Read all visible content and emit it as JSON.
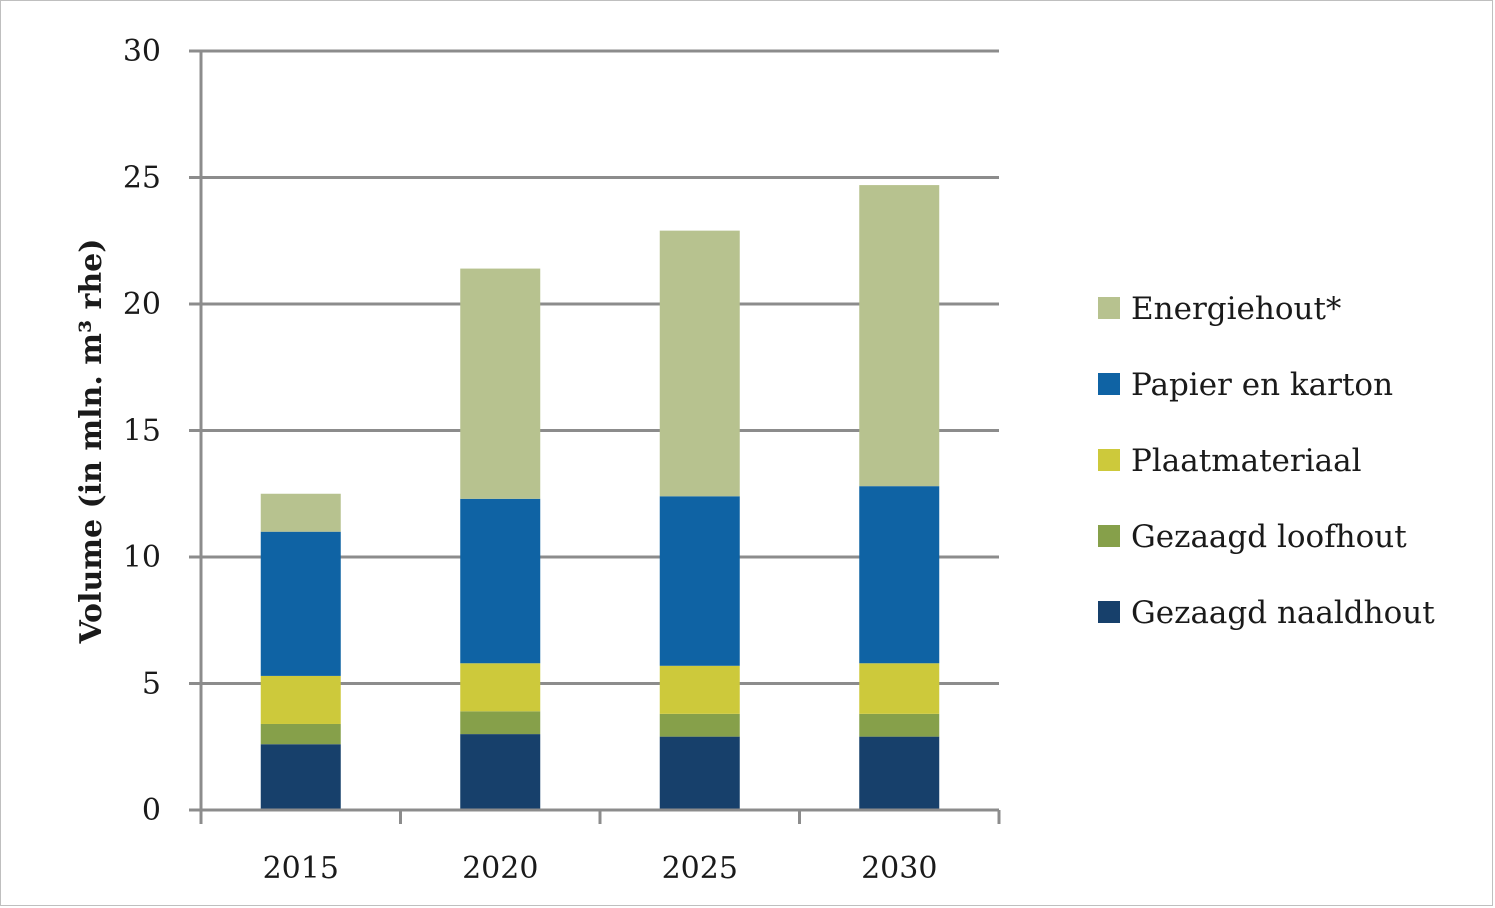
{
  "chart_data": {
    "type": "bar",
    "stacked": true,
    "ylabel": "Volume (in mln. m³ rhe)",
    "xlabel": "",
    "ylim": [
      0,
      30
    ],
    "yticks": [
      0,
      5,
      10,
      15,
      20,
      25,
      30
    ],
    "grid": true,
    "legend_position": "right",
    "categories": [
      "2015",
      "2020",
      "2025",
      "2030"
    ],
    "series": [
      {
        "name": "Gezaagd naaldhout",
        "color": "#17406b",
        "values": [
          2.6,
          3.0,
          2.9,
          2.9
        ]
      },
      {
        "name": "Gezaagd loofhout",
        "color": "#86a04a",
        "values": [
          0.8,
          0.9,
          0.9,
          0.9
        ]
      },
      {
        "name": "Plaatmateriaal",
        "color": "#cdc93b",
        "values": [
          1.9,
          1.9,
          1.9,
          2.0
        ]
      },
      {
        "name": "Papier en karton",
        "color": "#0f63a4",
        "values": [
          5.7,
          6.5,
          6.7,
          7.0
        ]
      },
      {
        "name": "Energiehout*",
        "color": "#b7c28f",
        "values": [
          1.5,
          9.1,
          10.5,
          11.9
        ]
      }
    ]
  }
}
